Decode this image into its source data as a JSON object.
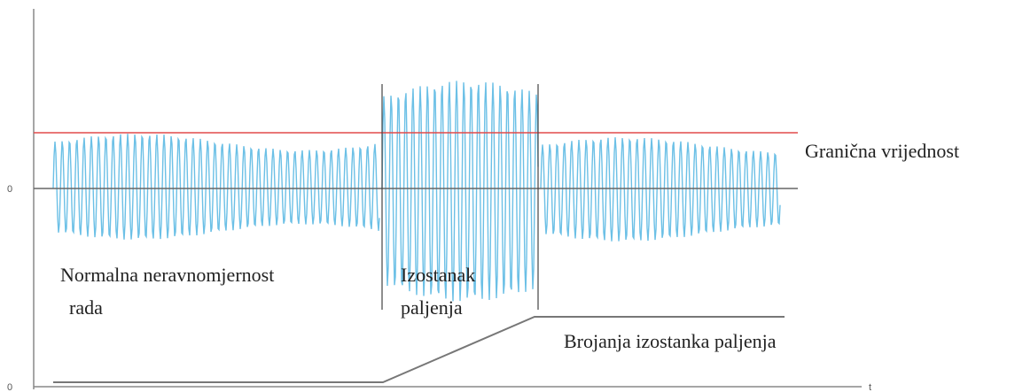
{
  "axis": {
    "origin_labels": [
      "0",
      "0"
    ],
    "time_label": "t"
  },
  "labels": {
    "threshold": "Granična vrijednost",
    "normal": [
      "Normalna neravnomjernost",
      "rada"
    ],
    "misfire": [
      "Izostanak",
      "paljenja"
    ],
    "counter": "Brojanja izostanka paljenja"
  }
}
